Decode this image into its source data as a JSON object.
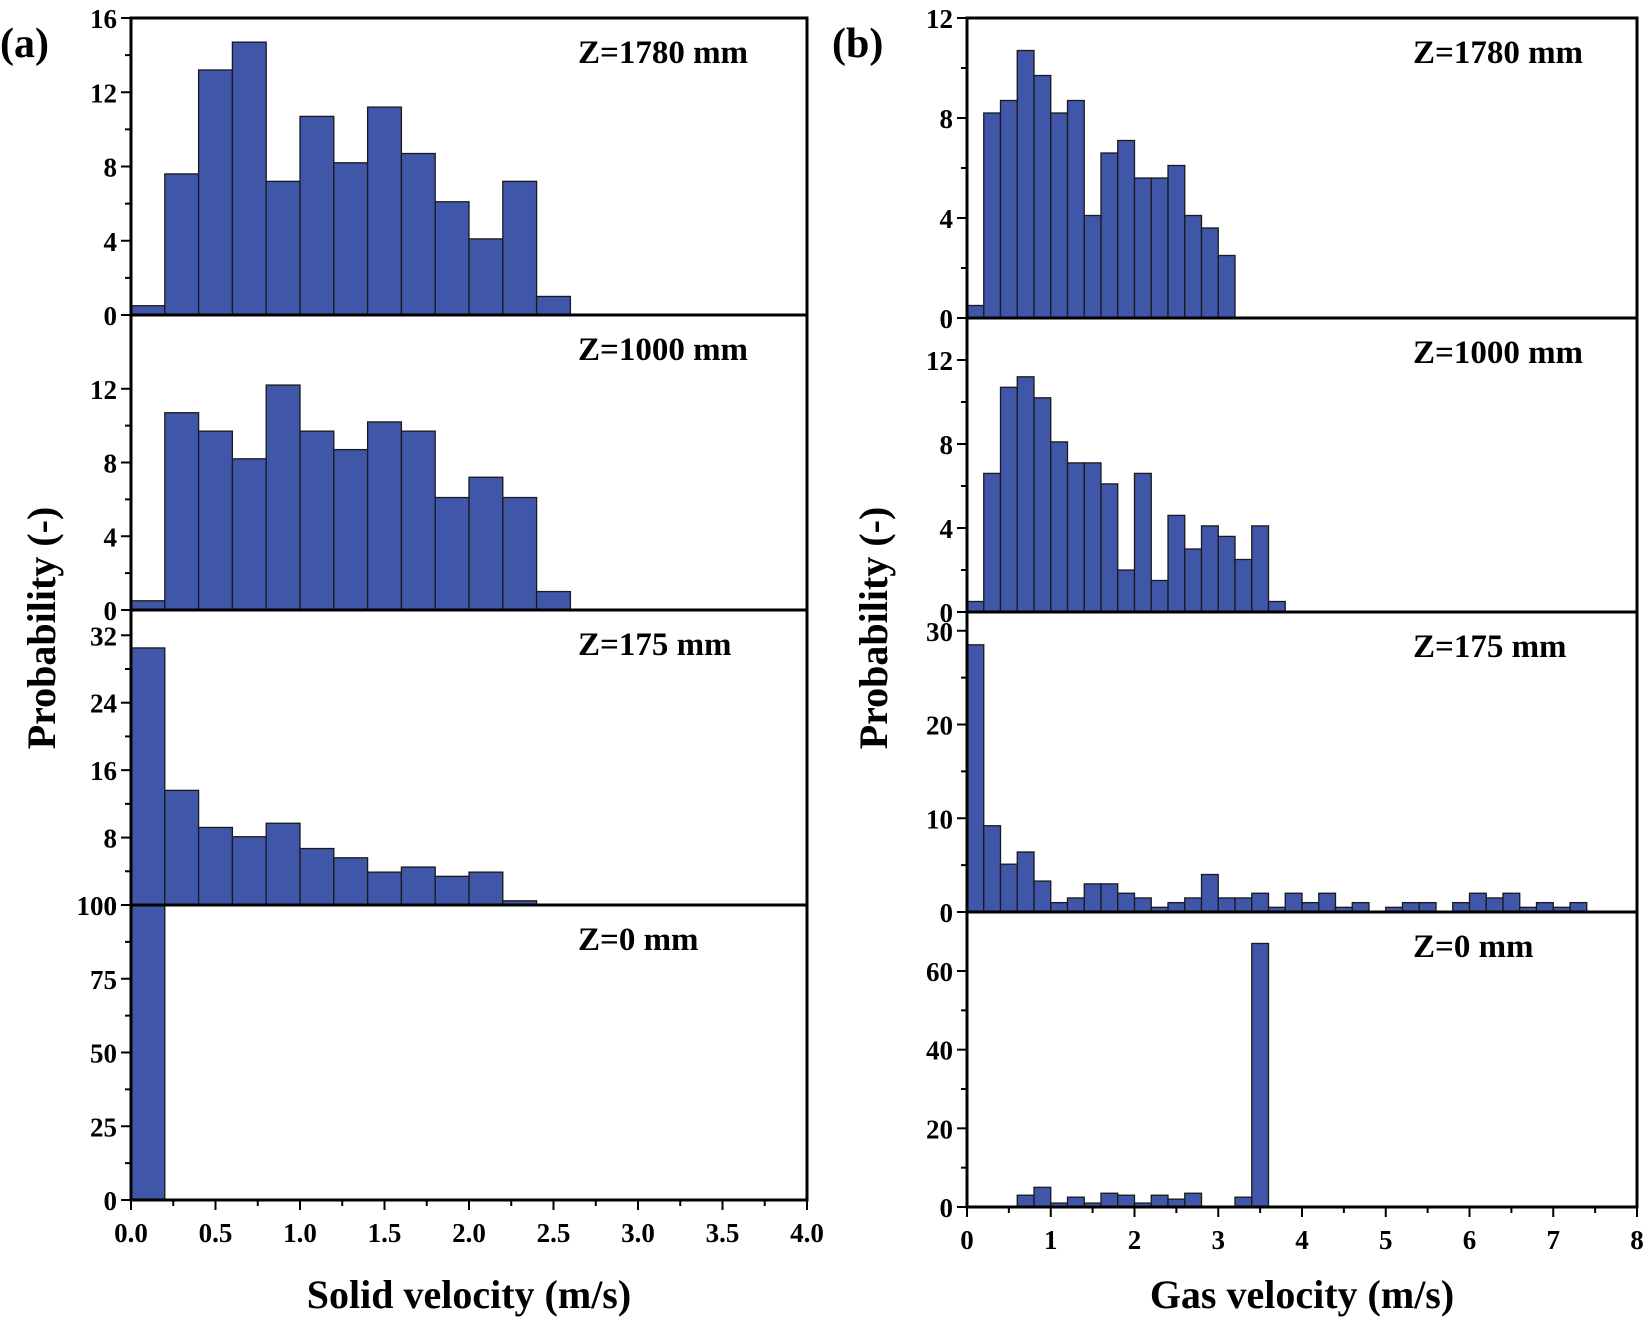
{
  "figure": {
    "label_a": "(a)",
    "label_b": "(b)",
    "bar_color": "#4056A8",
    "edge_color": "#1a1a1a"
  },
  "chart_data": [
    {
      "id": "a",
      "type": "bar",
      "xlabel": "Solid velocity (m/s)",
      "ylabel": "Probability (-)",
      "xlim": [
        0,
        4
      ],
      "x_ticks": [
        "0.0",
        "0.5",
        "1.0",
        "1.5",
        "2.0",
        "2.5",
        "3.0",
        "3.5",
        "4.0"
      ],
      "bin_width": 0.2,
      "panels": [
        {
          "label": "Z=1780 mm",
          "ylim": [
            0,
            16
          ],
          "y_ticks": [
            "0",
            "4",
            "8",
            "12",
            "16"
          ],
          "bin_starts": [
            0,
            0.2,
            0.4,
            0.6,
            0.8,
            1.0,
            1.2,
            1.4,
            1.6,
            1.8,
            2.0,
            2.2,
            2.4
          ],
          "values": [
            0.5,
            7.6,
            13.2,
            14.7,
            7.2,
            10.7,
            8.2,
            11.2,
            8.7,
            6.1,
            4.1,
            7.2,
            1.0
          ]
        },
        {
          "label": "Z=1000 mm",
          "ylim": [
            0,
            16
          ],
          "y_ticks": [
            "0",
            "4",
            "8",
            "12"
          ],
          "bin_starts": [
            0,
            0.2,
            0.4,
            0.6,
            0.8,
            1.0,
            1.2,
            1.4,
            1.6,
            1.8,
            2.0,
            2.2,
            2.4
          ],
          "values": [
            0.5,
            10.7,
            9.7,
            8.2,
            12.2,
            9.7,
            8.7,
            10.2,
            9.7,
            6.1,
            7.2,
            6.1,
            1.0
          ]
        },
        {
          "label": "Z=175 mm",
          "ylim": [
            0,
            35
          ],
          "y_ticks": [
            "0",
            "8",
            "16",
            "24",
            "32"
          ],
          "bin_starts": [
            0,
            0.2,
            0.4,
            0.6,
            0.8,
            1.0,
            1.2,
            1.4,
            1.6,
            1.8,
            2.0,
            2.2
          ],
          "values": [
            30.5,
            13.6,
            9.2,
            8.1,
            9.7,
            6.7,
            5.6,
            3.9,
            4.5,
            3.4,
            3.9,
            0.5
          ]
        },
        {
          "label": "Z=0 mm",
          "ylim": [
            0,
            100
          ],
          "y_ticks": [
            "0",
            "25",
            "50",
            "75",
            "100"
          ],
          "bin_starts": [
            0
          ],
          "values": [
            100
          ]
        }
      ]
    },
    {
      "id": "b",
      "type": "bar",
      "xlabel": "Gas velocity (m/s)",
      "ylabel": "Probability (-)",
      "xlim": [
        0,
        8
      ],
      "x_ticks": [
        "0",
        "1",
        "2",
        "3",
        "4",
        "5",
        "6",
        "7",
        "8"
      ],
      "bin_width": 0.2,
      "panels": [
        {
          "label": "Z=1780 mm",
          "ylim": [
            0,
            12
          ],
          "y_ticks": [
            "0",
            "4",
            "8",
            "12"
          ],
          "bin_starts": [
            0,
            0.2,
            0.4,
            0.6,
            0.8,
            1.0,
            1.2,
            1.4,
            1.6,
            1.8,
            2.0,
            2.2,
            2.4,
            2.6,
            2.8,
            3.0
          ],
          "values": [
            0.5,
            8.2,
            8.7,
            10.7,
            9.7,
            8.2,
            8.7,
            4.1,
            6.6,
            7.1,
            5.6,
            5.6,
            6.1,
            4.1,
            3.6,
            2.5
          ]
        },
        {
          "label": "Z=1000 mm",
          "ylim": [
            0,
            14
          ],
          "y_ticks": [
            "0",
            "4",
            "8",
            "12"
          ],
          "bin_starts": [
            0,
            0.2,
            0.4,
            0.6,
            0.8,
            1.0,
            1.2,
            1.4,
            1.6,
            1.8,
            2.0,
            2.2,
            2.4,
            2.6,
            2.8,
            3.0,
            3.2,
            3.4,
            3.6
          ],
          "values": [
            0.5,
            6.6,
            10.7,
            11.2,
            10.2,
            8.1,
            7.1,
            7.1,
            6.1,
            2.0,
            6.6,
            1.5,
            4.6,
            3.0,
            4.1,
            3.6,
            2.5,
            4.1,
            0.5
          ]
        },
        {
          "label": "Z=175 mm",
          "ylim": [
            0,
            32
          ],
          "y_ticks": [
            "0",
            "10",
            "20",
            "30"
          ],
          "bin_starts": [
            0,
            0.2,
            0.4,
            0.6,
            0.8,
            1.0,
            1.2,
            1.4,
            1.6,
            1.8,
            2.0,
            2.2,
            2.4,
            2.6,
            2.8,
            3.0,
            3.2,
            3.4,
            3.6,
            3.8,
            4.0,
            4.2,
            4.4,
            4.6,
            4.8,
            5.0,
            5.2,
            5.4,
            5.6,
            5.8,
            6.0,
            6.2,
            6.4,
            6.6,
            6.8,
            7.0,
            7.2
          ],
          "values": [
            28.5,
            9.2,
            5.1,
            6.4,
            3.3,
            1.0,
            1.5,
            3.0,
            3.0,
            2.0,
            1.5,
            0.5,
            1.0,
            1.5,
            4.0,
            1.5,
            1.5,
            2.0,
            0.5,
            2.0,
            1.0,
            2.0,
            0.5,
            1.0,
            0,
            0.5,
            1.0,
            1.0,
            0,
            1.0,
            2.0,
            1.5,
            2.0,
            0.5,
            1.0,
            0.5,
            1.0
          ]
        },
        {
          "label": "Z=0 mm",
          "ylim": [
            0,
            75
          ],
          "y_ticks": [
            "0",
            "20",
            "40",
            "60"
          ],
          "bin_starts": [
            0.6,
            0.8,
            1.0,
            1.2,
            1.4,
            1.6,
            1.8,
            2.0,
            2.2,
            2.4,
            2.6,
            2.8,
            3.0,
            3.2,
            3.4
          ],
          "values": [
            3.0,
            5.0,
            1.0,
            2.5,
            1.0,
            3.5,
            3.0,
            1.0,
            3.0,
            2.0,
            3.5,
            0,
            0,
            2.5,
            67.0
          ]
        }
      ]
    }
  ]
}
